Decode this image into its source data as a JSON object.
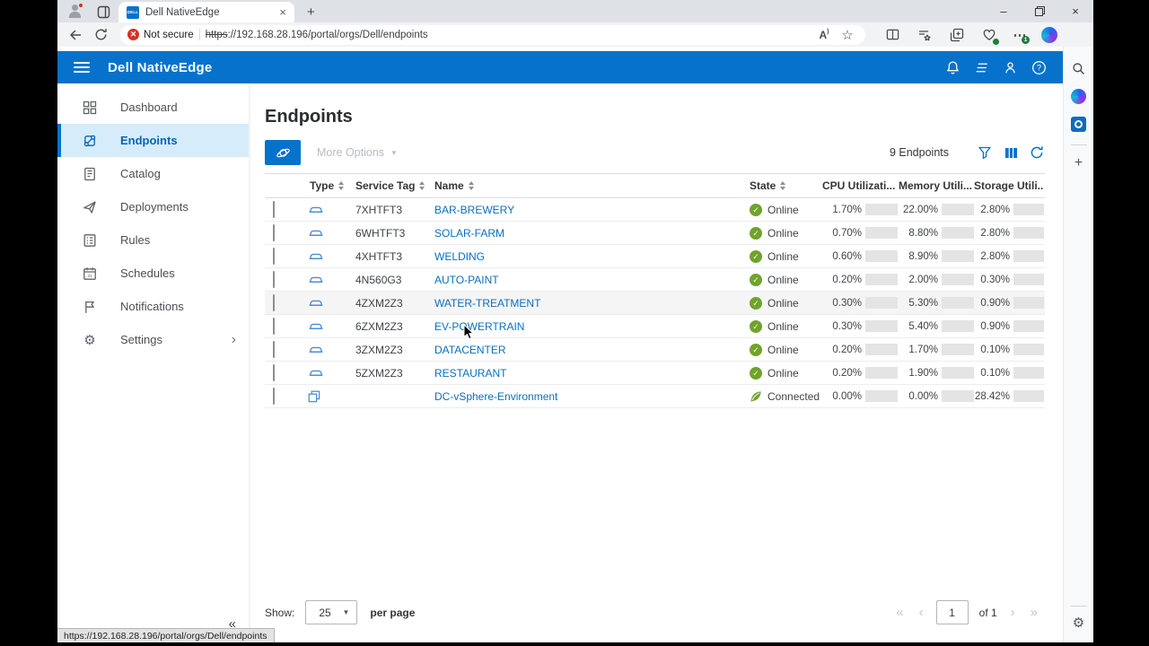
{
  "browser": {
    "tab_title": "Dell NativeEdge",
    "favicon_label": "DELL",
    "security_label": "Not secure",
    "url_scheme": "https",
    "url_rest": "://192.168.28.196/portal/orgs/Dell/endpoints",
    "more_badge": "1",
    "status_url": "https://192.168.28.196/portal/orgs/Dell/endpoints"
  },
  "app": {
    "header": {
      "title": "Dell NativeEdge"
    },
    "sidebar": {
      "items": [
        {
          "label": "Dashboard"
        },
        {
          "label": "Endpoints"
        },
        {
          "label": "Catalog"
        },
        {
          "label": "Deployments"
        },
        {
          "label": "Rules"
        },
        {
          "label": "Schedules"
        },
        {
          "label": "Notifications"
        },
        {
          "label": "Settings"
        }
      ]
    },
    "page": {
      "title": "Endpoints",
      "more_options_label": "More Options",
      "count_label": "9 Endpoints",
      "table": {
        "headers": {
          "type": "Type",
          "service_tag": "Service Tag",
          "name": "Name",
          "state": "State",
          "cpu": "CPU Utilizati...",
          "memory": "Memory Utili...",
          "storage": "Storage Utili..."
        },
        "rows": [
          {
            "type": "device",
            "service_tag": "7XHTFT3",
            "name": "BAR-BREWERY",
            "state": "Online",
            "state_icon": "check",
            "cpu": "1.70%",
            "cpu_val": 1.7,
            "memory": "22.00%",
            "memory_val": 22,
            "storage": "2.80%",
            "storage_val": 2.8,
            "highlight": false
          },
          {
            "type": "device",
            "service_tag": "6WHTFT3",
            "name": "SOLAR-FARM",
            "state": "Online",
            "state_icon": "check",
            "cpu": "0.70%",
            "cpu_val": 0.7,
            "memory": "8.80%",
            "memory_val": 8.8,
            "storage": "2.80%",
            "storage_val": 2.8,
            "highlight": false
          },
          {
            "type": "device",
            "service_tag": "4XHTFT3",
            "name": "WELDING",
            "state": "Online",
            "state_icon": "check",
            "cpu": "0.60%",
            "cpu_val": 0.6,
            "memory": "8.90%",
            "memory_val": 8.9,
            "storage": "2.80%",
            "storage_val": 2.8,
            "highlight": false
          },
          {
            "type": "device",
            "service_tag": "4N560G3",
            "name": "AUTO-PAINT",
            "state": "Online",
            "state_icon": "check",
            "cpu": "0.20%",
            "cpu_val": 0.2,
            "memory": "2.00%",
            "memory_val": 2,
            "storage": "0.30%",
            "storage_val": 0.3,
            "highlight": false
          },
          {
            "type": "device",
            "service_tag": "4ZXM2Z3",
            "name": "WATER-TREATMENT",
            "state": "Online",
            "state_icon": "check",
            "cpu": "0.30%",
            "cpu_val": 0.3,
            "memory": "5.30%",
            "memory_val": 5.3,
            "storage": "0.90%",
            "storage_val": 0.9,
            "highlight": true
          },
          {
            "type": "device",
            "service_tag": "6ZXM2Z3",
            "name": "EV-POWERTRAIN",
            "state": "Online",
            "state_icon": "check",
            "cpu": "0.30%",
            "cpu_val": 0.3,
            "memory": "5.40%",
            "memory_val": 5.4,
            "storage": "0.90%",
            "storage_val": 0.9,
            "highlight": false
          },
          {
            "type": "device",
            "service_tag": "3ZXM2Z3",
            "name": "DATACENTER",
            "state": "Online",
            "state_icon": "check",
            "cpu": "0.20%",
            "cpu_val": 0.2,
            "memory": "1.70%",
            "memory_val": 1.7,
            "storage": "0.10%",
            "storage_val": 0.1,
            "highlight": false
          },
          {
            "type": "device",
            "service_tag": "5ZXM2Z3",
            "name": "RESTAURANT",
            "state": "Online",
            "state_icon": "check",
            "cpu": "0.20%",
            "cpu_val": 0.2,
            "memory": "1.90%",
            "memory_val": 1.9,
            "storage": "0.10%",
            "storage_val": 0.1,
            "highlight": false
          },
          {
            "type": "cluster",
            "service_tag": "",
            "name": "DC-vSphere-Environment",
            "state": "Connected",
            "state_icon": "leaf",
            "cpu": "0.00%",
            "cpu_val": 0,
            "memory": "0.00%",
            "memory_val": 0,
            "storage": "28.42%",
            "storage_val": 28.42,
            "highlight": false
          }
        ]
      },
      "pagination": {
        "show_label": "Show:",
        "page_size": "25",
        "per_page_label": "per page",
        "page": "1",
        "of_label": "of 1"
      }
    }
  }
}
